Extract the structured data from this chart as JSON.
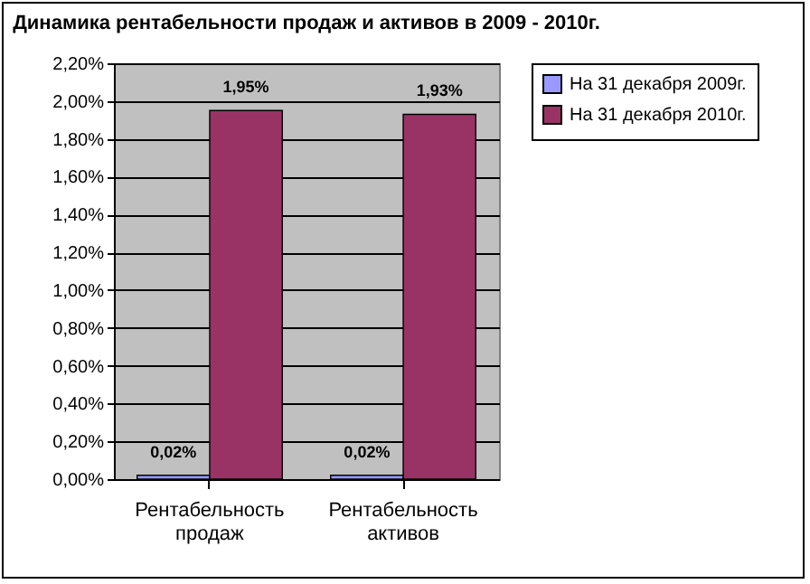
{
  "chart_data": {
    "type": "bar",
    "title": "Динамика рентабельности продаж и активов в 2009 - 2010г.",
    "categories": [
      "Рентабельность продаж",
      "Рентабельность активов"
    ],
    "series": [
      {
        "name": "На 31 декабря 2009г.",
        "color": "#9999ff",
        "values": [
          0.02,
          0.02
        ],
        "value_labels": [
          "0,02%",
          "0,02%"
        ]
      },
      {
        "name": "На 31 декабря 2010г.",
        "color": "#993366",
        "values": [
          1.95,
          1.93
        ],
        "value_labels": [
          "1,95%",
          "1,93%"
        ]
      }
    ],
    "ylim": [
      0,
      2.2
    ],
    "yticks": [
      {
        "value": 0,
        "label": "0,00%"
      },
      {
        "value": 0.2,
        "label": "0,20%"
      },
      {
        "value": 0.4,
        "label": "0,40%"
      },
      {
        "value": 0.6,
        "label": "0,60%"
      },
      {
        "value": 0.8,
        "label": "0,80%"
      },
      {
        "value": 1,
        "label": "1,00%"
      },
      {
        "value": 1.2,
        "label": "1,20%"
      },
      {
        "value": 1.4,
        "label": "1,40%"
      },
      {
        "value": 1.6,
        "label": "1,60%"
      },
      {
        "value": 1.8,
        "label": "1,80%"
      },
      {
        "value": 2,
        "label": "2,00%"
      },
      {
        "value": 2.2,
        "label": "2,20%"
      }
    ],
    "grid": "y",
    "legend": "right"
  }
}
